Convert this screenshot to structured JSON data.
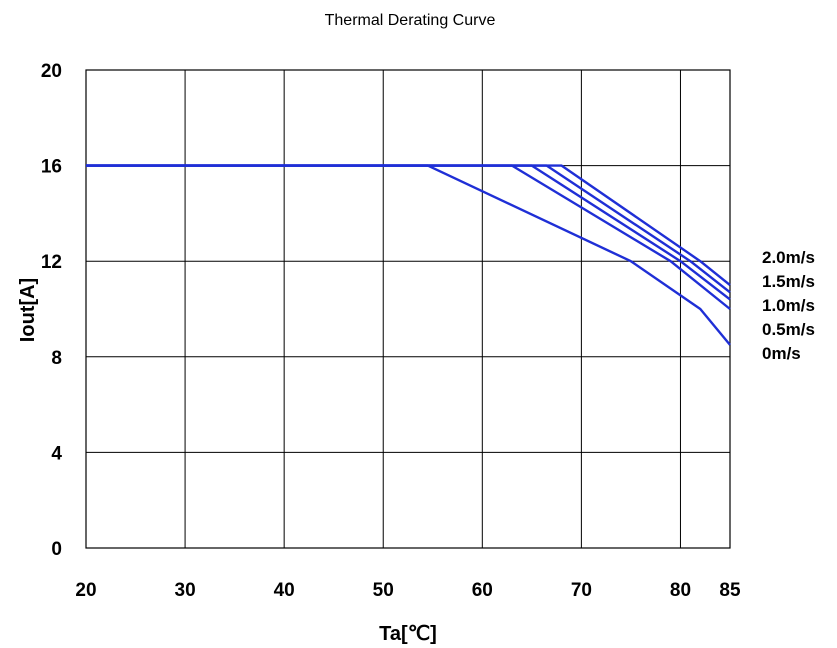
{
  "chart_data": {
    "type": "line",
    "title": "Thermal Derating Curve",
    "xlabel": "Ta[℃]",
    "ylabel": "Iout[A]",
    "xlim": [
      20,
      85
    ],
    "ylim": [
      0,
      20
    ],
    "xticks": [
      20,
      30,
      40,
      50,
      60,
      70,
      80,
      85
    ],
    "yticks": [
      0,
      4,
      8,
      12,
      16,
      20
    ],
    "grid": true,
    "legend_position": "right",
    "line_color": "#1f2fd6",
    "series": [
      {
        "name": "2.0m/s",
        "points": [
          [
            20,
            16
          ],
          [
            68,
            16
          ],
          [
            82,
            12
          ],
          [
            85,
            11
          ]
        ]
      },
      {
        "name": "1.5m/s",
        "points": [
          [
            20,
            16
          ],
          [
            66.5,
            16
          ],
          [
            81,
            12
          ],
          [
            85,
            10.7
          ]
        ]
      },
      {
        "name": "1.0m/s",
        "points": [
          [
            20,
            16
          ],
          [
            65,
            16
          ],
          [
            80,
            12
          ],
          [
            85,
            10.4
          ]
        ]
      },
      {
        "name": "0.5m/s",
        "points": [
          [
            20,
            16
          ],
          [
            63,
            16
          ],
          [
            79,
            12
          ],
          [
            85,
            10
          ]
        ]
      },
      {
        "name": "0m/s",
        "points": [
          [
            20,
            16
          ],
          [
            54.5,
            16
          ],
          [
            75,
            12
          ],
          [
            82,
            10
          ],
          [
            85,
            8.5
          ]
        ]
      }
    ]
  }
}
